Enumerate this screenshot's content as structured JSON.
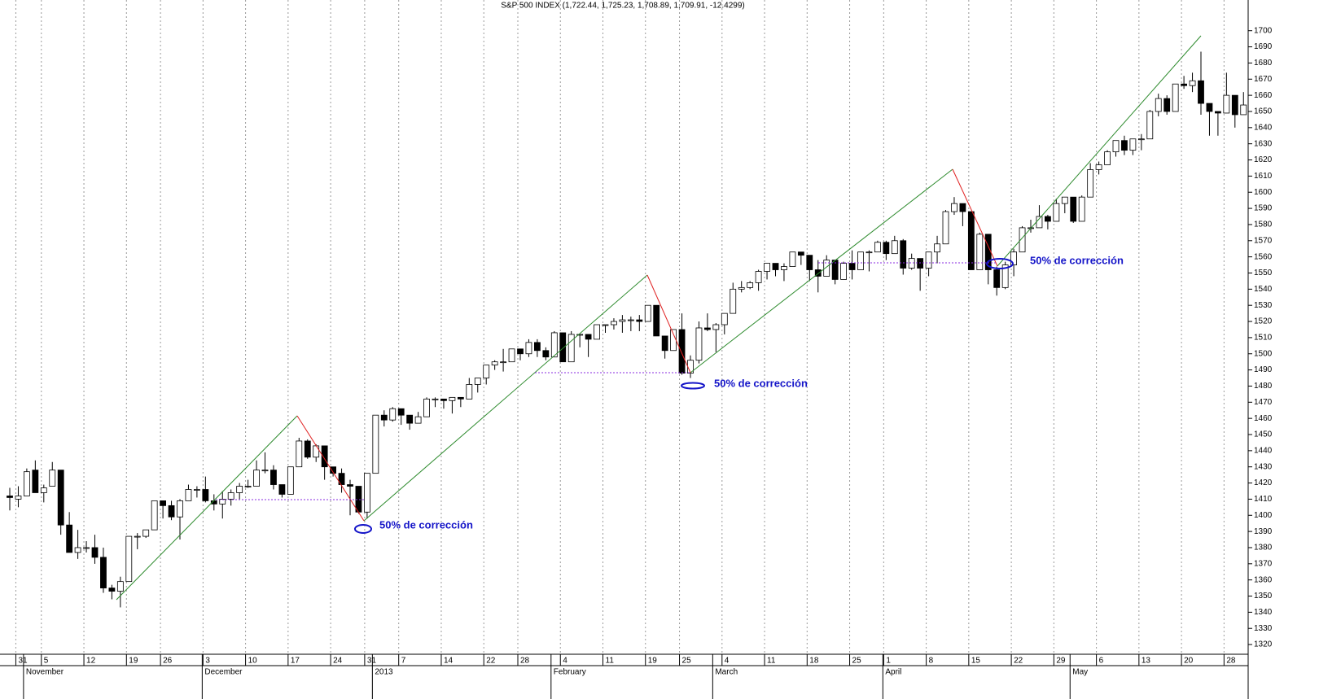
{
  "chart_data": {
    "type": "candlestick",
    "title": "S&P 500 INDEX (1,722.44, 1,725.23, 1,708.89, 1,709.91, -12.4299)",
    "annotations": [
      "50% de corrección",
      "50% de corrección",
      "50% de corrección"
    ],
    "ylim": [
      1315,
      1719
    ],
    "yticks": [
      1320,
      1330,
      1340,
      1350,
      1360,
      1370,
      1380,
      1390,
      1400,
      1410,
      1420,
      1430,
      1440,
      1450,
      1460,
      1470,
      1480,
      1490,
      1500,
      1510,
      1520,
      1530,
      1540,
      1550,
      1560,
      1570,
      1580,
      1590,
      1600,
      1610,
      1620,
      1630,
      1640,
      1650,
      1660,
      1670,
      1680,
      1690,
      1700
    ],
    "grid": true,
    "up_color": "#ffffff",
    "down_color": "#000000",
    "categories": [
      null,
      "31",
      null,
      null,
      "5",
      null,
      null,
      null,
      null,
      "12",
      null,
      null,
      null,
      null,
      "19",
      null,
      null,
      null,
      "26",
      null,
      null,
      null,
      null,
      "3",
      null,
      null,
      null,
      null,
      "10",
      null,
      null,
      null,
      null,
      "17",
      null,
      null,
      null,
      null,
      "24",
      null,
      null,
      null,
      "31",
      null,
      null,
      null,
      "7",
      null,
      null,
      null,
      null,
      "14",
      null,
      null,
      null,
      null,
      "22",
      null,
      null,
      null,
      "28",
      null,
      null,
      null,
      null,
      "4",
      null,
      null,
      null,
      null,
      "11",
      null,
      null,
      null,
      null,
      "19",
      null,
      null,
      null,
      "25",
      null,
      null,
      null,
      null,
      "4",
      null,
      null,
      null,
      null,
      "11",
      null,
      null,
      null,
      null,
      "18",
      null,
      null,
      null,
      null,
      "25",
      null,
      null,
      null,
      "1",
      null,
      null,
      null,
      null,
      "8",
      null,
      null,
      null,
      null,
      "15",
      null,
      null,
      null,
      null,
      "22",
      null,
      null,
      null,
      null,
      "29",
      null,
      null,
      null,
      null,
      "6",
      null,
      null,
      null,
      null,
      "13",
      null,
      null,
      null,
      null,
      "20",
      null,
      null,
      null,
      null,
      "28",
      null,
      null
    ],
    "months": [
      null,
      null,
      "November",
      null,
      null,
      null,
      null,
      null,
      null,
      null,
      null,
      null,
      null,
      null,
      null,
      null,
      null,
      null,
      null,
      null,
      null,
      null,
      null,
      "December",
      null,
      null,
      null,
      null,
      null,
      null,
      null,
      null,
      null,
      null,
      null,
      null,
      null,
      null,
      null,
      null,
      null,
      null,
      null,
      "2013",
      null,
      null,
      null,
      null,
      null,
      null,
      null,
      null,
      null,
      null,
      null,
      null,
      null,
      null,
      null,
      null,
      null,
      null,
      null,
      null,
      "February",
      null,
      null,
      null,
      null,
      null,
      null,
      null,
      null,
      null,
      null,
      null,
      null,
      null,
      null,
      null,
      null,
      null,
      null,
      "March",
      null,
      null,
      null,
      null,
      null,
      null,
      null,
      null,
      null,
      null,
      null,
      null,
      null,
      null,
      null,
      null,
      null,
      null,
      null,
      "April",
      null,
      null,
      null,
      null,
      null,
      null,
      null,
      null,
      null,
      null,
      null,
      null,
      null,
      null,
      null,
      null,
      null,
      null,
      null,
      null,
      null,
      "May",
      null,
      null,
      null,
      null,
      null,
      null,
      null,
      null,
      null,
      null,
      null,
      null,
      null,
      null,
      null,
      null,
      null,
      null,
      null,
      null
    ],
    "candles": [
      [
        1412,
        1417,
        1403,
        1411
      ],
      [
        1410,
        1418,
        1405,
        1412
      ],
      [
        1412,
        1429,
        1412,
        1427
      ],
      [
        1428,
        1434,
        1414,
        1414
      ],
      [
        1414,
        1419,
        1408,
        1417
      ],
      [
        1418,
        1433,
        1418,
        1428
      ],
      [
        1428,
        1428,
        1388,
        1394
      ],
      [
        1394,
        1402,
        1377,
        1377
      ],
      [
        1377,
        1391,
        1373,
        1380
      ],
      [
        1380,
        1384,
        1377,
        1380
      ],
      [
        1380,
        1388,
        1370,
        1374
      ],
      [
        1374,
        1380,
        1352,
        1355
      ],
      [
        1355,
        1357,
        1348,
        1353
      ],
      [
        1353,
        1362,
        1343,
        1359
      ],
      [
        1359,
        1387,
        1359,
        1387
      ],
      [
        1387,
        1389,
        1379,
        1387
      ],
      [
        1387,
        1391,
        1386,
        1391
      ],
      [
        1391,
        1409,
        1391,
        1409
      ],
      [
        1409,
        1409,
        1398,
        1406
      ],
      [
        1406,
        1409,
        1397,
        1399
      ],
      [
        1399,
        1410,
        1385,
        1409
      ],
      [
        1409,
        1419,
        1409,
        1416
      ],
      [
        1416,
        1418,
        1411,
        1416
      ],
      [
        1416,
        1424,
        1408,
        1409
      ],
      [
        1409,
        1413,
        1403,
        1407
      ],
      [
        1407,
        1415,
        1398,
        1410
      ],
      [
        1410,
        1416,
        1406,
        1414
      ],
      [
        1414,
        1420,
        1410,
        1418
      ],
      [
        1418,
        1422,
        1417,
        1418
      ],
      [
        1418,
        1434,
        1418,
        1428
      ],
      [
        1428,
        1439,
        1426,
        1428
      ],
      [
        1428,
        1431,
        1416,
        1419
      ],
      [
        1419,
        1419,
        1411,
        1413
      ],
      [
        1413,
        1430,
        1413,
        1430
      ],
      [
        1430,
        1448,
        1430,
        1446
      ],
      [
        1446,
        1447,
        1435,
        1436
      ],
      [
        1436,
        1444,
        1433,
        1443
      ],
      [
        1443,
        1443,
        1422,
        1430
      ],
      [
        1430,
        1430,
        1424,
        1426
      ],
      [
        1426,
        1429,
        1414,
        1419
      ],
      [
        1419,
        1422,
        1400,
        1418
      ],
      [
        1418,
        1418,
        1401,
        1402
      ],
      [
        1402,
        1426,
        1398,
        1426
      ],
      [
        1426,
        1462,
        1426,
        1462
      ],
      [
        1462,
        1465,
        1455,
        1459
      ],
      [
        1459,
        1467,
        1458,
        1466
      ],
      [
        1466,
        1466,
        1456,
        1462
      ],
      [
        1462,
        1462,
        1453,
        1457
      ],
      [
        1457,
        1464,
        1457,
        1461
      ],
      [
        1461,
        1473,
        1461,
        1472
      ],
      [
        1472,
        1473,
        1467,
        1472
      ],
      [
        1472,
        1472,
        1466,
        1471
      ],
      [
        1471,
        1473,
        1463,
        1473
      ],
      [
        1473,
        1473,
        1467,
        1472
      ],
      [
        1472,
        1485,
        1472,
        1481
      ],
      [
        1481,
        1485,
        1476,
        1485
      ],
      [
        1485,
        1493,
        1481,
        1493
      ],
      [
        1493,
        1496,
        1490,
        1495
      ],
      [
        1495,
        1503,
        1489,
        1495
      ],
      [
        1495,
        1503,
        1495,
        1503
      ],
      [
        1503,
        1503,
        1496,
        1500
      ],
      [
        1500,
        1509,
        1498,
        1507
      ],
      [
        1507,
        1509,
        1498,
        1502
      ],
      [
        1502,
        1504,
        1496,
        1498
      ],
      [
        1498,
        1514,
        1498,
        1513
      ],
      [
        1513,
        1513,
        1495,
        1495
      ],
      [
        1495,
        1514,
        1495,
        1512
      ],
      [
        1512,
        1512,
        1504,
        1512
      ],
      [
        1512,
        1512,
        1498,
        1509
      ],
      [
        1509,
        1518,
        1509,
        1518
      ],
      [
        1518,
        1518,
        1513,
        1518
      ],
      [
        1518,
        1522,
        1515,
        1520
      ],
      [
        1520,
        1524,
        1513,
        1521
      ],
      [
        1521,
        1523,
        1514,
        1521
      ],
      [
        1521,
        1524,
        1514,
        1520
      ],
      [
        1520,
        1530,
        1520,
        1530
      ],
      [
        1530,
        1530,
        1511,
        1511
      ],
      [
        1511,
        1511,
        1497,
        1502
      ],
      [
        1502,
        1515,
        1502,
        1515
      ],
      [
        1515,
        1525,
        1487,
        1488
      ],
      [
        1488,
        1499,
        1485,
        1496
      ],
      [
        1496,
        1520,
        1494,
        1516
      ],
      [
        1516,
        1525,
        1514,
        1515
      ],
      [
        1515,
        1519,
        1501,
        1518
      ],
      [
        1518,
        1525,
        1512,
        1525
      ],
      [
        1525,
        1544,
        1525,
        1540
      ],
      [
        1540,
        1545,
        1538,
        1541
      ],
      [
        1541,
        1545,
        1540,
        1544
      ],
      [
        1544,
        1552,
        1539,
        1551
      ],
      [
        1551,
        1556,
        1546,
        1556
      ],
      [
        1556,
        1556,
        1548,
        1552
      ],
      [
        1552,
        1556,
        1545,
        1554
      ],
      [
        1554,
        1563,
        1554,
        1563
      ],
      [
        1563,
        1563,
        1555,
        1561
      ],
      [
        1561,
        1561,
        1545,
        1552
      ],
      [
        1552,
        1558,
        1538,
        1548
      ],
      [
        1548,
        1561,
        1548,
        1558
      ],
      [
        1558,
        1558,
        1543,
        1546
      ],
      [
        1546,
        1557,
        1546,
        1556
      ],
      [
        1556,
        1564,
        1546,
        1552
      ],
      [
        1552,
        1563,
        1552,
        1563
      ],
      [
        1563,
        1564,
        1551,
        1563
      ],
      [
        1563,
        1570,
        1563,
        1569
      ],
      [
        1569,
        1570,
        1558,
        1562
      ],
      [
        1562,
        1573,
        1562,
        1570
      ],
      [
        1570,
        1571,
        1549,
        1553
      ],
      [
        1553,
        1562,
        1552,
        1559
      ],
      [
        1559,
        1559,
        1539,
        1553
      ],
      [
        1553,
        1563,
        1548,
        1563
      ],
      [
        1563,
        1573,
        1556,
        1568
      ],
      [
        1568,
        1589,
        1568,
        1588
      ],
      [
        1588,
        1597,
        1586,
        1593
      ],
      [
        1593,
        1593,
        1579,
        1588
      ],
      [
        1588,
        1588,
        1552,
        1552
      ],
      [
        1552,
        1575,
        1552,
        1574
      ],
      [
        1574,
        1574,
        1543,
        1552
      ],
      [
        1552,
        1554,
        1536,
        1541
      ],
      [
        1541,
        1557,
        1540,
        1555
      ],
      [
        1555,
        1565,
        1548,
        1563
      ],
      [
        1563,
        1579,
        1563,
        1578
      ],
      [
        1578,
        1583,
        1575,
        1578
      ],
      [
        1578,
        1592,
        1578,
        1585
      ],
      [
        1585,
        1586,
        1577,
        1582
      ],
      [
        1582,
        1596,
        1582,
        1593
      ],
      [
        1593,
        1597,
        1587,
        1597
      ],
      [
        1597,
        1597,
        1581,
        1582
      ],
      [
        1582,
        1598,
        1582,
        1597
      ],
      [
        1597,
        1618,
        1597,
        1614
      ],
      [
        1614,
        1619,
        1611,
        1617
      ],
      [
        1617,
        1626,
        1617,
        1625
      ],
      [
        1625,
        1632,
        1622,
        1632
      ],
      [
        1632,
        1635,
        1623,
        1626
      ],
      [
        1626,
        1633,
        1623,
        1633
      ],
      [
        1633,
        1636,
        1626,
        1633
      ],
      [
        1633,
        1651,
        1633,
        1650
      ],
      [
        1650,
        1661,
        1647,
        1658
      ],
      [
        1658,
        1660,
        1648,
        1650
      ],
      [
        1650,
        1667,
        1650,
        1667
      ],
      [
        1667,
        1672,
        1664,
        1666
      ],
      [
        1666,
        1674,
        1662,
        1669
      ],
      [
        1669,
        1687,
        1648,
        1655
      ],
      [
        1655,
        1655,
        1635,
        1650
      ],
      [
        1650,
        1650,
        1635,
        1649
      ],
      [
        1649,
        1674,
        1649,
        1660
      ],
      [
        1660,
        1660,
        1640,
        1648
      ],
      [
        1648,
        1662,
        1648,
        1654
      ]
    ]
  }
}
